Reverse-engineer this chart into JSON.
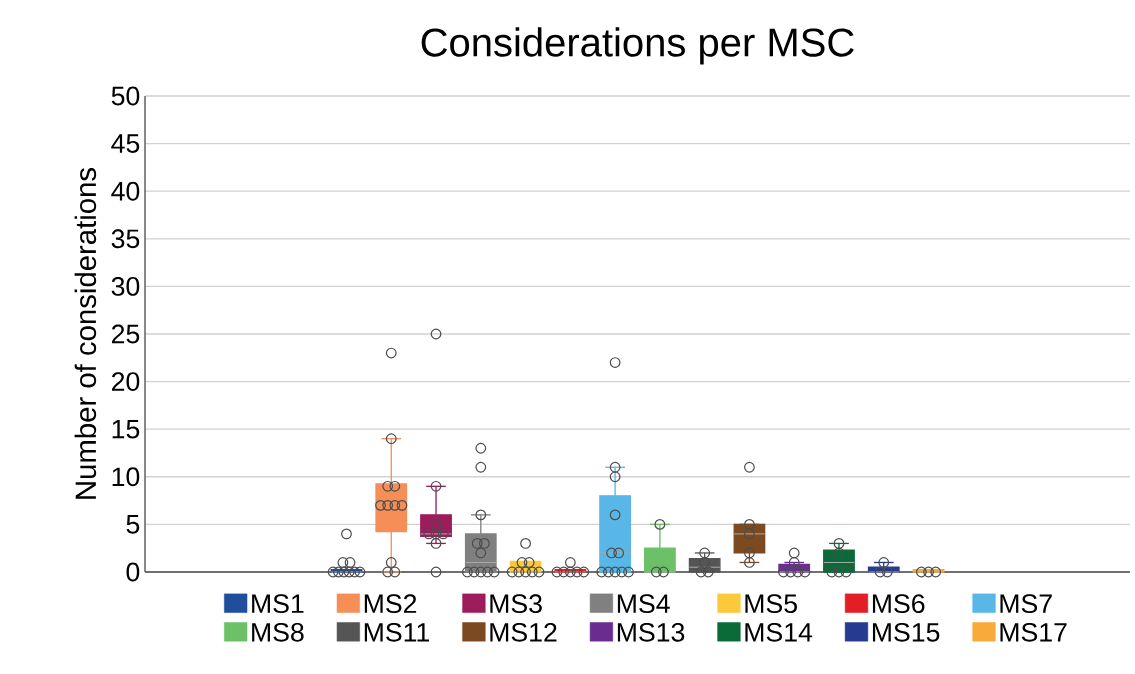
{
  "chart_data": {
    "type": "box",
    "title": "Considerations per MSC",
    "ylabel": "Number of considerations",
    "categories": [
      null,
      null,
      null,
      null,
      null,
      null,
      null,
      null,
      null,
      null,
      null,
      null,
      null,
      null,
      null,
      null,
      null,
      null,
      null,
      null,
      null,
      null
    ],
    "ylim": [
      0,
      50
    ],
    "yticks": [
      0,
      5,
      10,
      15,
      20,
      25,
      30,
      35,
      40,
      45,
      50
    ],
    "grid": "y",
    "legend": "bottom",
    "tick_labels": "y",
    "series": [
      {
        "name": "MS1",
        "color": "#1f4e9c",
        "boxes": [
          null,
          null,
          null,
          null,
          {
            "low": 0,
            "q1": 0,
            "median": 0,
            "q3": 0.25,
            "high": 0.25,
            "outliers": [
              0,
              0,
              0,
              0,
              0,
              0,
              1,
              1,
              4
            ]
          },
          null,
          null,
          null,
          null,
          null,
          null,
          null,
          null,
          null,
          null,
          null,
          null,
          null,
          null,
          null,
          null,
          null
        ]
      },
      {
        "name": "MS2",
        "color": "#f58f57",
        "boxes": [
          null,
          null,
          null,
          null,
          null,
          {
            "low": 0,
            "q1": 4.25,
            "median": 7,
            "q3": 9.25,
            "high": 14,
            "outliers": [
              23,
              14,
              9,
              9,
              7,
              7,
              7,
              7,
              1,
              0,
              0
            ]
          },
          null,
          null,
          null,
          null,
          null,
          null,
          null,
          null,
          null,
          null,
          null,
          null,
          null,
          null,
          null,
          null
        ]
      },
      {
        "name": "MS3",
        "color": "#9c1c5c",
        "boxes": [
          null,
          null,
          null,
          null,
          null,
          null,
          {
            "low": 3,
            "q1": 3.75,
            "median": 4,
            "q3": 6,
            "high": 9,
            "outliers": [
              25,
              9,
              5,
              4,
              4,
              4,
              3,
              0
            ]
          },
          null,
          null,
          null,
          null,
          null,
          null,
          null,
          null,
          null,
          null,
          null,
          null,
          null,
          null,
          null
        ]
      },
      {
        "name": "MS4",
        "color": "#808080",
        "boxes": [
          null,
          null,
          null,
          null,
          null,
          null,
          null,
          {
            "low": 0,
            "q1": 0,
            "median": 1,
            "q3": 4,
            "high": 6,
            "outliers": [
              13,
              11,
              6,
              3,
              3,
              2,
              0,
              0,
              0,
              0,
              0
            ]
          },
          null,
          null,
          null,
          null,
          null,
          null,
          null,
          null,
          null,
          null,
          null,
          null,
          null,
          null
        ]
      },
      {
        "name": "MS5",
        "color": "#fdc93a",
        "boxes": [
          null,
          null,
          null,
          null,
          null,
          null,
          null,
          null,
          {
            "low": 0,
            "q1": 0,
            "median": 0,
            "q3": 1.1,
            "high": 1.1,
            "outliers": [
              3,
              1,
              1,
              0,
              0,
              0,
              0,
              0
            ]
          },
          null,
          null,
          null,
          null,
          null,
          null,
          null,
          null,
          null,
          null,
          null,
          null,
          null
        ]
      },
      {
        "name": "MS6",
        "color": "#e21f26",
        "boxes": [
          null,
          null,
          null,
          null,
          null,
          null,
          null,
          null,
          null,
          {
            "low": 0,
            "q1": 0,
            "median": 0,
            "q3": 0.25,
            "high": 0.25,
            "outliers": [
              1,
              0,
              0,
              0,
              0,
              0
            ]
          },
          null,
          null,
          null,
          null,
          null,
          null,
          null,
          null,
          null,
          null,
          null,
          null
        ]
      },
      {
        "name": "MS7",
        "color": "#58b7e6",
        "boxes": [
          null,
          null,
          null,
          null,
          null,
          null,
          null,
          null,
          null,
          null,
          {
            "low": 0,
            "q1": 0,
            "median": 2,
            "q3": 8,
            "high": 11,
            "outliers": [
              22,
              11,
              10,
              6,
              2,
              2,
              0,
              0,
              0,
              0,
              0
            ]
          },
          null,
          null,
          null,
          null,
          null,
          null,
          null,
          null,
          null,
          null,
          null
        ]
      },
      {
        "name": "MS8",
        "color": "#6cc067",
        "boxes": [
          null,
          null,
          null,
          null,
          null,
          null,
          null,
          null,
          null,
          null,
          null,
          {
            "low": 0,
            "q1": 0,
            "median": 0,
            "q3": 2.5,
            "high": 5,
            "outliers": [
              5,
              0,
              0
            ]
          },
          null,
          null,
          null,
          null,
          null,
          null,
          null,
          null,
          null,
          null
        ]
      },
      {
        "name": "MS11",
        "color": "#555555",
        "boxes": [
          null,
          null,
          null,
          null,
          null,
          null,
          null,
          null,
          null,
          null,
          null,
          null,
          {
            "low": 0,
            "q1": 0,
            "median": 0.5,
            "q3": 1.4,
            "high": 2,
            "outliers": [
              2,
              1,
              0,
              0
            ]
          },
          null,
          null,
          null,
          null,
          null,
          null,
          null,
          null,
          null
        ]
      },
      {
        "name": "MS12",
        "color": "#7b4a20",
        "boxes": [
          null,
          null,
          null,
          null,
          null,
          null,
          null,
          null,
          null,
          null,
          null,
          null,
          null,
          {
            "low": 1,
            "q1": 2,
            "median": 4,
            "q3": 5,
            "high": 5,
            "outliers": [
              11,
              5,
              4,
              2,
              1
            ]
          },
          null,
          null,
          null,
          null,
          null,
          null,
          null,
          null
        ]
      },
      {
        "name": "MS13",
        "color": "#6a2c91",
        "boxes": [
          null,
          null,
          null,
          null,
          null,
          null,
          null,
          null,
          null,
          null,
          null,
          null,
          null,
          null,
          {
            "low": 0,
            "q1": 0,
            "median": 0,
            "q3": 0.8,
            "high": 1,
            "outliers": [
              2,
              1,
              0,
              0,
              0,
              0
            ]
          },
          null,
          null,
          null,
          null,
          null,
          null,
          null
        ]
      },
      {
        "name": "MS14",
        "color": "#0b6b38",
        "boxes": [
          null,
          null,
          null,
          null,
          null,
          null,
          null,
          null,
          null,
          null,
          null,
          null,
          null,
          null,
          null,
          {
            "low": 0,
            "q1": 0,
            "median": 1,
            "q3": 2.3,
            "high": 3,
            "outliers": [
              3,
              2,
              0,
              0,
              0
            ]
          },
          null,
          null,
          null,
          null,
          null,
          null
        ]
      },
      {
        "name": "MS15",
        "color": "#263b8f",
        "boxes": [
          null,
          null,
          null,
          null,
          null,
          null,
          null,
          null,
          null,
          null,
          null,
          null,
          null,
          null,
          null,
          null,
          {
            "low": 0,
            "q1": 0,
            "median": 0,
            "q3": 0.5,
            "high": 1,
            "outliers": [
              1,
              0,
              0
            ]
          },
          null,
          null,
          null,
          null,
          null
        ]
      },
      {
        "name": "MS17",
        "color": "#f9aa3b",
        "boxes": [
          null,
          null,
          null,
          null,
          null,
          null,
          null,
          null,
          null,
          null,
          null,
          null,
          null,
          null,
          null,
          null,
          null,
          {
            "low": 0,
            "q1": 0,
            "median": 0,
            "q3": 0.25,
            "high": 0.25,
            "outliers": [
              0,
              0,
              0
            ]
          },
          null,
          null,
          null,
          null
        ]
      }
    ]
  }
}
